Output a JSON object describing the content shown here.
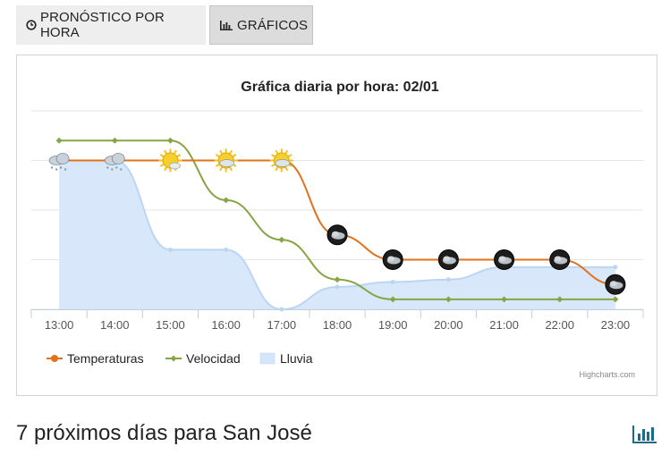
{
  "tabs": {
    "hourly_label": "PRONÓSTICO POR HORA",
    "charts_label": "GRÁFICOS"
  },
  "section": {
    "title": "7 próximos días para San José"
  },
  "credits": "Highcharts.com",
  "colors": {
    "temperature": "#e0721b",
    "speed": "#87a545",
    "rain_fill": "#d4e6fa",
    "rain_line": "#bcd5f4",
    "icon": "#1c6b8a"
  },
  "chart_data": {
    "type": "line",
    "title": "Gráfica diaria por hora: 02/01",
    "categories": [
      "13:00",
      "14:00",
      "15:00",
      "16:00",
      "17:00",
      "18:00",
      "19:00",
      "20:00",
      "21:00",
      "22:00",
      "23:00"
    ],
    "series": [
      {
        "name": "Temperaturas",
        "type": "spline",
        "values": [
          3,
          3,
          3,
          3,
          3,
          1.5,
          1,
          1,
          1,
          1,
          0.5
        ],
        "markers": [
          "cloudy-snow",
          "cloudy-snow",
          "sun",
          "sun-cloud",
          "sun-cloud",
          "moon-cloud",
          "moon-cloud",
          "moon-cloud",
          "moon-cloud",
          "moon-cloud",
          "moon-cloud"
        ]
      },
      {
        "name": "Velocidad",
        "type": "spline",
        "values": [
          3.4,
          3.4,
          3.4,
          2.2,
          1.4,
          0.6,
          0.2,
          0.2,
          0.2,
          0.2,
          0.2
        ]
      },
      {
        "name": "Lluvia",
        "type": "areaspline",
        "values": [
          3.0,
          3.0,
          1.2,
          1.2,
          0.0,
          0.45,
          0.55,
          0.6,
          0.85,
          0.85,
          0.85
        ]
      }
    ],
    "ylim": [
      0,
      4
    ],
    "legend": "bottom-left"
  }
}
